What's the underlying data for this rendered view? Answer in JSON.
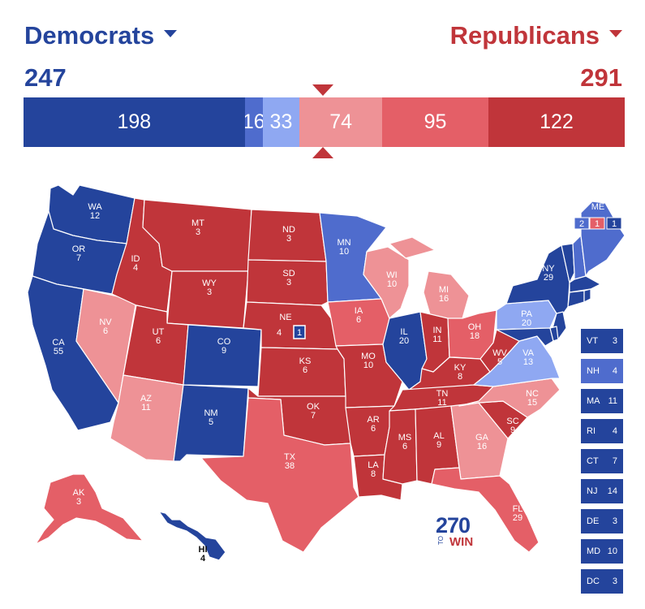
{
  "header": {
    "dem_label": "Democrats",
    "rep_label": "Republicans",
    "dem_total": "247",
    "rep_total": "291"
  },
  "bar": {
    "segments": [
      {
        "key": "safe_dem",
        "value": 198,
        "label": "198",
        "color": "#24449c"
      },
      {
        "key": "likely_dem",
        "value": 16,
        "label": "16",
        "color": "#4f6ccd"
      },
      {
        "key": "lean_dem",
        "value": 33,
        "label": "33",
        "color": "#8fa8f2"
      },
      {
        "key": "lean_rep",
        "value": 74,
        "label": "74",
        "color": "#ee9296"
      },
      {
        "key": "likely_rep",
        "value": 95,
        "label": "95",
        "color": "#e45f67"
      },
      {
        "key": "safe_rep",
        "value": 122,
        "label": "122",
        "color": "#c0353a"
      }
    ]
  },
  "states": [
    {
      "abbr": "WA",
      "ev": "12",
      "rating": "safe_dem"
    },
    {
      "abbr": "OR",
      "ev": "7",
      "rating": "safe_dem"
    },
    {
      "abbr": "CA",
      "ev": "55",
      "rating": "safe_dem"
    },
    {
      "abbr": "NV",
      "ev": "6",
      "rating": "lean_rep"
    },
    {
      "abbr": "ID",
      "ev": "4",
      "rating": "safe_rep"
    },
    {
      "abbr": "MT",
      "ev": "3",
      "rating": "safe_rep"
    },
    {
      "abbr": "WY",
      "ev": "3",
      "rating": "safe_rep"
    },
    {
      "abbr": "UT",
      "ev": "6",
      "rating": "safe_rep"
    },
    {
      "abbr": "AZ",
      "ev": "11",
      "rating": "lean_rep"
    },
    {
      "abbr": "CO",
      "ev": "9",
      "rating": "safe_dem"
    },
    {
      "abbr": "NM",
      "ev": "5",
      "rating": "safe_dem"
    },
    {
      "abbr": "ND",
      "ev": "3",
      "rating": "safe_rep"
    },
    {
      "abbr": "SD",
      "ev": "3",
      "rating": "safe_rep"
    },
    {
      "abbr": "NE",
      "ev": "4",
      "rating": "safe_rep",
      "district_ev": "1"
    },
    {
      "abbr": "KS",
      "ev": "6",
      "rating": "safe_rep"
    },
    {
      "abbr": "OK",
      "ev": "7",
      "rating": "safe_rep"
    },
    {
      "abbr": "TX",
      "ev": "38",
      "rating": "likely_rep"
    },
    {
      "abbr": "MN",
      "ev": "10",
      "rating": "likely_dem"
    },
    {
      "abbr": "IA",
      "ev": "6",
      "rating": "likely_rep"
    },
    {
      "abbr": "MO",
      "ev": "10",
      "rating": "safe_rep"
    },
    {
      "abbr": "AR",
      "ev": "6",
      "rating": "safe_rep"
    },
    {
      "abbr": "LA",
      "ev": "8",
      "rating": "safe_rep"
    },
    {
      "abbr": "WI",
      "ev": "10",
      "rating": "lean_rep"
    },
    {
      "abbr": "IL",
      "ev": "20",
      "rating": "safe_dem"
    },
    {
      "abbr": "MI",
      "ev": "16",
      "rating": "lean_rep"
    },
    {
      "abbr": "IN",
      "ev": "11",
      "rating": "safe_rep"
    },
    {
      "abbr": "OH",
      "ev": "18",
      "rating": "likely_rep"
    },
    {
      "abbr": "KY",
      "ev": "8",
      "rating": "safe_rep"
    },
    {
      "abbr": "TN",
      "ev": "11",
      "rating": "safe_rep"
    },
    {
      "abbr": "MS",
      "ev": "6",
      "rating": "safe_rep"
    },
    {
      "abbr": "AL",
      "ev": "9",
      "rating": "safe_rep"
    },
    {
      "abbr": "GA",
      "ev": "16",
      "rating": "lean_rep"
    },
    {
      "abbr": "FL",
      "ev": "29",
      "rating": "likely_rep"
    },
    {
      "abbr": "SC",
      "ev": "9",
      "rating": "safe_rep"
    },
    {
      "abbr": "NC",
      "ev": "15",
      "rating": "lean_rep"
    },
    {
      "abbr": "VA",
      "ev": "13",
      "rating": "lean_dem"
    },
    {
      "abbr": "WV",
      "ev": "5",
      "rating": "safe_rep"
    },
    {
      "abbr": "PA",
      "ev": "20",
      "rating": "lean_dem"
    },
    {
      "abbr": "NY",
      "ev": "29",
      "rating": "safe_dem"
    },
    {
      "abbr": "ME",
      "ev": "",
      "rating": "likely_dem",
      "district_ev": [
        "2",
        "1",
        "1"
      ]
    },
    {
      "abbr": "AK",
      "ev": "3",
      "rating": "likely_rep"
    },
    {
      "abbr": "HI",
      "ev": "4",
      "rating": "safe_dem"
    }
  ],
  "small_states": [
    {
      "abbr": "VT",
      "ev": "3",
      "rating": "safe_dem"
    },
    {
      "abbr": "NH",
      "ev": "4",
      "rating": "likely_dem"
    },
    {
      "abbr": "MA",
      "ev": "11",
      "rating": "safe_dem"
    },
    {
      "abbr": "RI",
      "ev": "4",
      "rating": "safe_dem"
    },
    {
      "abbr": "CT",
      "ev": "7",
      "rating": "safe_dem"
    },
    {
      "abbr": "NJ",
      "ev": "14",
      "rating": "safe_dem"
    },
    {
      "abbr": "DE",
      "ev": "3",
      "rating": "safe_dem"
    },
    {
      "abbr": "MD",
      "ev": "10",
      "rating": "safe_dem"
    },
    {
      "abbr": "DC",
      "ev": "3",
      "rating": "safe_dem"
    }
  ],
  "logo": {
    "number": "270",
    "to": "TO",
    "win": "WIN"
  },
  "colors": {
    "safe_dem": "#24449c",
    "likely_dem": "#4f6ccd",
    "lean_dem": "#8fa8f2",
    "lean_rep": "#ee9296",
    "likely_rep": "#e45f67",
    "safe_rep": "#c0353a"
  }
}
